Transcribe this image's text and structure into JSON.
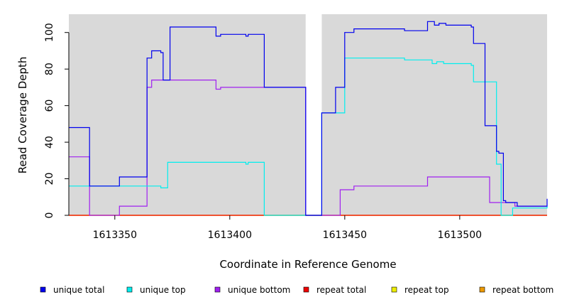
{
  "chart_data": {
    "type": "line",
    "title": "",
    "xlabel": "Coordinate in Reference Genome",
    "ylabel": "Read Coverage Depth",
    "xlim": [
      1613330,
      1613538
    ],
    "ylim": [
      0,
      110
    ],
    "x_ticks": [
      1613350,
      1613400,
      1613450,
      1613500
    ],
    "x_tick_labels": [
      "1613350",
      "1613400",
      "1613450",
      "1613500"
    ],
    "y_ticks": [
      0,
      20,
      40,
      60,
      80,
      100
    ],
    "y_tick_labels": [
      "0",
      "20",
      "40",
      "60",
      "80",
      "100"
    ],
    "background_color": "#d9d9d9",
    "gap_region": [
      1613433,
      1613440
    ],
    "grid": false,
    "legend_position": "bottom",
    "series": [
      {
        "name": "unique total",
        "color": "#0000ee",
        "x": [
          1613330,
          1613339,
          1613352,
          1613364,
          1613366,
          1613367,
          1613370,
          1613371,
          1613374,
          1613394,
          1613396,
          1613407,
          1613408,
          1613415,
          1613433,
          1613440,
          1613446,
          1613450,
          1613454,
          1613476,
          1613486,
          1613489,
          1613491,
          1613494,
          1613505,
          1613506,
          1613511,
          1613516,
          1613517,
          1613519,
          1613520,
          1613525,
          1613538
        ],
        "y": [
          48,
          16,
          21,
          86,
          90,
          90,
          89,
          74,
          103,
          98,
          99,
          98,
          99,
          70,
          0,
          56,
          70,
          100,
          102,
          101,
          106,
          104,
          105,
          104,
          103,
          94,
          49,
          35,
          34,
          8,
          7,
          5,
          9
        ]
      },
      {
        "name": "unique top",
        "color": "#00eeee",
        "x": [
          1613330,
          1613346,
          1613352,
          1613368,
          1613370,
          1613373,
          1613407,
          1613408,
          1613415,
          1613433,
          1613440,
          1613450,
          1613476,
          1613488,
          1613490,
          1613493,
          1613505,
          1613506,
          1613516,
          1613518,
          1613523,
          1613538
        ],
        "y": [
          16,
          16,
          16,
          16,
          15,
          29,
          28,
          29,
          0,
          0,
          56,
          86,
          85,
          83,
          84,
          83,
          82,
          73,
          28,
          0,
          4,
          5
        ]
      },
      {
        "name": "unique bottom",
        "color": "#a020f0",
        "x": [
          1613330,
          1613339,
          1613352,
          1613364,
          1613366,
          1613367,
          1613394,
          1613396,
          1613433,
          1613444,
          1613448,
          1613454,
          1613486,
          1613513,
          1613524,
          1613538
        ],
        "y": [
          32,
          0,
          5,
          70,
          74,
          74,
          69,
          70,
          0,
          0,
          14,
          16,
          21,
          7,
          5,
          5
        ]
      },
      {
        "name": "repeat total",
        "color": "#ee0000",
        "x": [
          1613330,
          1613538
        ],
        "y": [
          0,
          0
        ]
      },
      {
        "name": "repeat top",
        "color": "#eeee00",
        "x": [
          1613330,
          1613538
        ],
        "y": [
          0,
          0
        ]
      },
      {
        "name": "repeat bottom",
        "color": "#ee9a00",
        "x": [
          1613330,
          1613538
        ],
        "y": [
          0,
          0
        ]
      }
    ]
  }
}
